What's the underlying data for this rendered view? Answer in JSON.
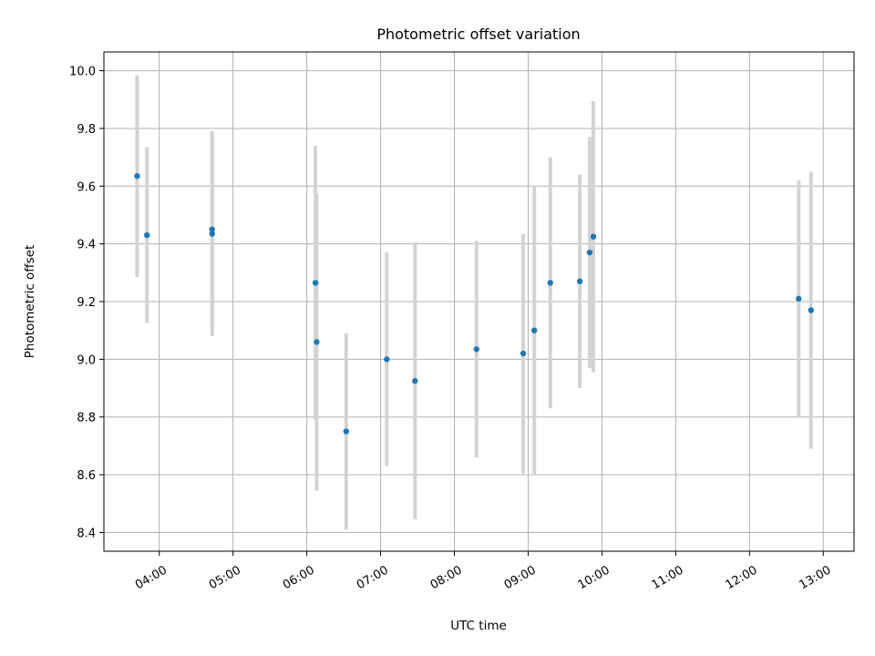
{
  "chart_data": {
    "type": "scatter",
    "title": "Photometric offset variation",
    "xlabel": "UTC time",
    "ylabel": "Photometric offset",
    "x_tick_labels": [
      "04:00",
      "05:00",
      "06:00",
      "07:00",
      "08:00",
      "09:00",
      "10:00",
      "11:00",
      "12:00",
      "13:00"
    ],
    "x_tick_hours": [
      4,
      5,
      6,
      7,
      8,
      9,
      10,
      11,
      12,
      13
    ],
    "xlim": [
      "03:15",
      "13:25"
    ],
    "y_ticks": [
      8.4,
      8.6,
      8.8,
      9.0,
      9.2,
      9.4,
      9.6,
      9.8,
      10.0
    ],
    "y_tick_labels": [
      "8.4",
      "8.6",
      "8.8",
      "9.0",
      "9.2",
      "9.4",
      "9.6",
      "9.8",
      "10.0"
    ],
    "ylim": [
      8.335,
      10.065
    ],
    "grid": true,
    "colors": {
      "points": "#1f77b4",
      "errorbars": "#d3d3d3",
      "grid": "#b0b0b0"
    },
    "points": [
      {
        "time": "03:42",
        "y": 9.635,
        "err": 0.35
      },
      {
        "time": "03:50",
        "y": 9.43,
        "err": 0.305
      },
      {
        "time": "04:43",
        "y": 9.45,
        "err": 0.34
      },
      {
        "time": "04:43",
        "y": 9.435,
        "err": 0.355
      },
      {
        "time": "06:07",
        "y": 9.265,
        "err": 0.475
      },
      {
        "time": "06:08",
        "y": 9.06,
        "err": 0.515
      },
      {
        "time": "06:32",
        "y": 8.75,
        "err": 0.34
      },
      {
        "time": "07:05",
        "y": 9.0,
        "err": 0.37
      },
      {
        "time": "07:28",
        "y": 8.925,
        "err": 0.48
      },
      {
        "time": "08:18",
        "y": 9.035,
        "err": 0.375
      },
      {
        "time": "08:56",
        "y": 9.02,
        "err": 0.415
      },
      {
        "time": "09:05",
        "y": 9.1,
        "err": 0.5
      },
      {
        "time": "09:18",
        "y": 9.265,
        "err": 0.435
      },
      {
        "time": "09:42",
        "y": 9.27,
        "err": 0.37
      },
      {
        "time": "09:50",
        "y": 9.37,
        "err": 0.4
      },
      {
        "time": "09:53",
        "y": 9.425,
        "err": 0.47
      },
      {
        "time": "12:40",
        "y": 9.21,
        "err": 0.41
      },
      {
        "time": "12:50",
        "y": 9.17,
        "err": 0.48
      }
    ]
  }
}
